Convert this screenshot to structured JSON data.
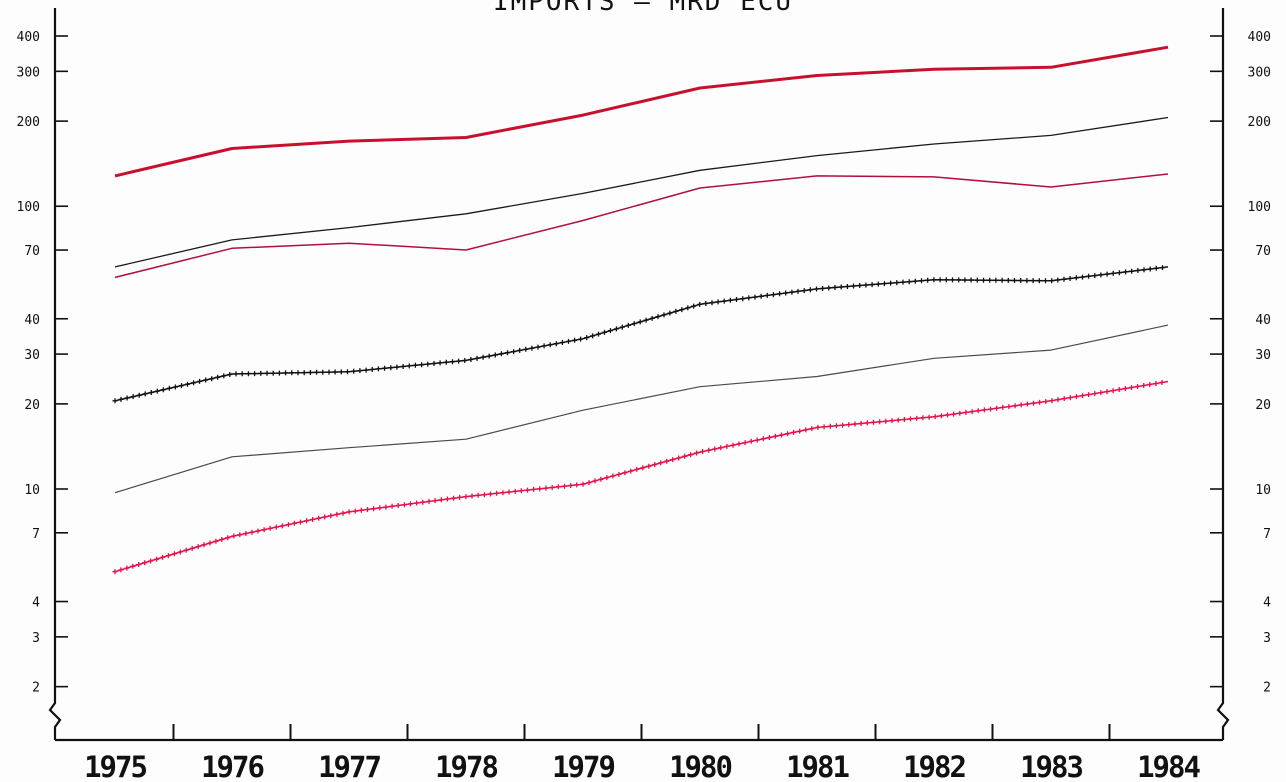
{
  "chart_data": {
    "type": "line",
    "title": "IMPORTS — MRD ECU",
    "y_scale": "log",
    "ylim": [
      1.6,
      480
    ],
    "y_ticks": [
      {
        "value": 400,
        "label": "400"
      },
      {
        "value": 300,
        "label": "300"
      },
      {
        "value": 200,
        "label": "200"
      },
      {
        "value": 100,
        "label": "100"
      },
      {
        "value": 70,
        "label": "70"
      },
      {
        "value": 40,
        "label": "40"
      },
      {
        "value": 30,
        "label": "30"
      },
      {
        "value": 20,
        "label": "20"
      },
      {
        "value": 10,
        "label": "10"
      },
      {
        "value": 7,
        "label": "7"
      },
      {
        "value": 4,
        "label": "4"
      },
      {
        "value": 3,
        "label": "3"
      },
      {
        "value": 2,
        "label": "2"
      }
    ],
    "categories": [
      "1975",
      "1976",
      "1977",
      "1978",
      "1979",
      "1980",
      "1981",
      "1982",
      "1983",
      "1984"
    ],
    "grid": false,
    "series": [
      {
        "color": "#c8102e",
        "style": "solid",
        "weight": 3,
        "values": [
          128,
          160,
          170,
          175,
          210,
          262,
          290,
          305,
          310,
          365
        ]
      },
      {
        "color": "#1a1a1a",
        "style": "solid",
        "weight": 1.3,
        "values": [
          61,
          76,
          84,
          94,
          111,
          134,
          151,
          166,
          178,
          206
        ]
      },
      {
        "color": "#b0103a",
        "style": "solid",
        "weight": 1.5,
        "values": [
          56,
          71,
          74,
          70,
          89,
          116,
          128,
          127,
          117,
          130
        ]
      },
      {
        "color": "#111111",
        "style": "cross",
        "weight": 1.5,
        "values": [
          20.5,
          25.5,
          26,
          28.5,
          34,
          45,
          51,
          55,
          54.5,
          61
        ]
      },
      {
        "color": "#4a4a4a",
        "style": "solid",
        "weight": 1.2,
        "values": [
          9.7,
          13,
          14,
          15,
          19,
          23,
          25,
          29,
          31,
          38
        ]
      },
      {
        "color": "#e8104a",
        "style": "cross",
        "weight": 1.5,
        "values": [
          5.1,
          6.8,
          8.3,
          9.4,
          10.4,
          13.5,
          16.5,
          18,
          20.5,
          24
        ]
      }
    ]
  }
}
